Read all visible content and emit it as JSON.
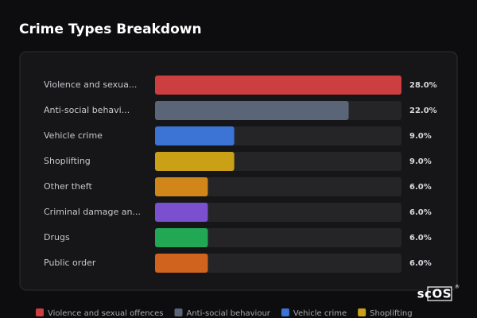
{
  "chart_data": {
    "type": "bar",
    "orientation": "horizontal",
    "title": "Crime Types Breakdown",
    "categories": [
      "Violence and sexua...",
      "Anti-social behavi...",
      "Vehicle crime",
      "Shoplifting",
      "Other theft",
      "Criminal damage an...",
      "Drugs",
      "Public order"
    ],
    "values": [
      28,
      22,
      9,
      9,
      6,
      6,
      6,
      6
    ],
    "value_labels": [
      "28.0%",
      "22.0%",
      "9.0%",
      "9.0%",
      "6.0%",
      "6.0%",
      "6.0%",
      "6.0%"
    ],
    "colors": [
      "#cc3e40",
      "#5a6577",
      "#3b74d4",
      "#c9a016",
      "#d1861a",
      "#7a50cf",
      "#22a855",
      "#d0641e"
    ],
    "legend": [
      "Violence and sexual offences",
      "Anti-social behaviour",
      "Vehicle crime",
      "Shoplifting"
    ]
  },
  "brand": "scOS",
  "brand_mark": "®"
}
